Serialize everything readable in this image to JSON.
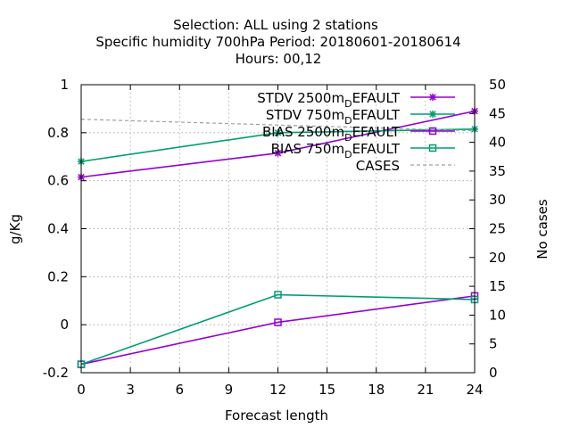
{
  "chart_data": {
    "type": "line",
    "title_lines": [
      "Selection: ALL using     2 stations",
      "Specific humidity 700hPa   Period: 20180601-20180614",
      "Hours:  00,12"
    ],
    "xlabel": "Forecast length",
    "ylabel": "g/Kg",
    "y2label": "No cases",
    "xlim": [
      0,
      24
    ],
    "ylim": [
      -0.2,
      1
    ],
    "y2lim": [
      0,
      50
    ],
    "xticks": [
      "0",
      "3",
      "6",
      "9",
      "12",
      "15",
      "18",
      "21",
      "24"
    ],
    "yticks": [
      "-0.2",
      "0",
      "0.2",
      "0.4",
      "0.6",
      "0.8",
      "1"
    ],
    "y2ticks": [
      "0",
      "5",
      "10",
      "15",
      "20",
      "25",
      "30",
      "35",
      "40",
      "45",
      "50"
    ],
    "grid": true,
    "legend_position": "top-right",
    "series": [
      {
        "name": "STDV 2500m_DEFAULT",
        "legend_main": "STDV 2500m",
        "legend_sub": "D",
        "legend_tail": "EFAULT",
        "color": "#9400d3",
        "marker": "star",
        "axis": "y",
        "x": [
          0,
          12,
          24
        ],
        "values": [
          0.615,
          0.715,
          0.89
        ]
      },
      {
        "name": "STDV 750m_DEFAULT",
        "legend_main": "STDV 750m",
        "legend_sub": "D",
        "legend_tail": "EFAULT",
        "color": "#009e73",
        "marker": "star",
        "axis": "y",
        "x": [
          0,
          12,
          24
        ],
        "values": [
          0.68,
          0.8,
          0.815
        ]
      },
      {
        "name": "BIAS 2500m_DEFAULT",
        "legend_main": "BIAS 2500m",
        "legend_sub": "D",
        "legend_tail": "EFAULT",
        "color": "#9400d3",
        "marker": "square",
        "axis": "y",
        "x": [
          0,
          12,
          24
        ],
        "values": [
          -0.165,
          0.01,
          0.12
        ]
      },
      {
        "name": "BIAS 750m_DEFAULT",
        "legend_main": "BIAS 750m",
        "legend_sub": "D",
        "legend_tail": "EFAULT",
        "color": "#009e73",
        "marker": "square",
        "axis": "y",
        "x": [
          0,
          12,
          24
        ],
        "values": [
          -0.165,
          0.125,
          0.105
        ]
      },
      {
        "name": "CASES",
        "legend_main": "CASES",
        "legend_sub": "",
        "legend_tail": "",
        "color": "#a0a0a0",
        "marker": "none",
        "dashed": true,
        "axis": "y2",
        "x": [
          0,
          12,
          24
        ],
        "values": [
          44,
          43,
          42
        ]
      }
    ]
  }
}
